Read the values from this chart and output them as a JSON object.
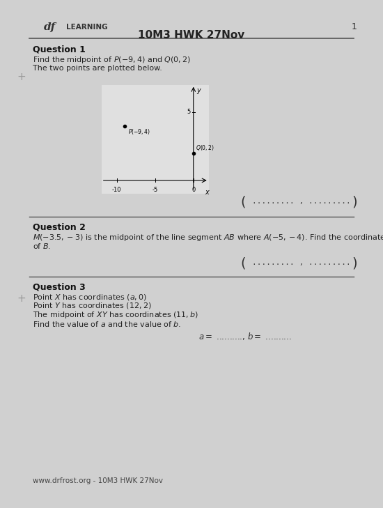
{
  "bg_color": "#d0d0d0",
  "page_bg": "#e0e0e0",
  "title_main": "10M3 HWK 27Nov",
  "header_df": "df",
  "header_learning": "LEARNING",
  "page_number": "1",
  "q1_title": "Question 1",
  "q1_text1": "Find the midpoint of $P(-9,4)$ and $Q(0,2)$",
  "q1_text2": "The two points are plotted below.",
  "q2_title": "Question 2",
  "q2_text_a": "$M(-3.5,-3)$ is the midpoint of the line segment $AB$ where $A(-5,-4)$. Find the coordinates",
  "q2_text_b": "of $B$.",
  "q3_title": "Question 3",
  "q3_line1": "Point $X$ has coordinates $(a,0)$",
  "q3_line2": "Point $Y$ has coordinates $(12,2)$",
  "q3_line3": "The midpoint of $XY$ has coordinates $(11,b)$",
  "q3_line4": "Find the value of $a$ and the value of $b$.",
  "footer": "www.drfrost.org - 10M3 HWK 27Nov",
  "plot_P": [
    -9,
    4
  ],
  "plot_Q": [
    0,
    2
  ],
  "plot_xlim": [
    -12,
    2
  ],
  "plot_ylim": [
    -1,
    7
  ],
  "plot_xticks": [
    -10,
    -5,
    0
  ],
  "plot_ytick5": 5
}
